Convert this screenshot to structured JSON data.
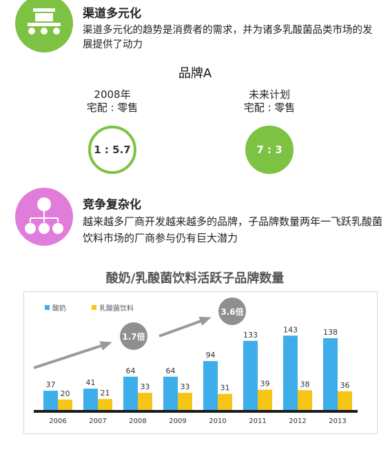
{
  "section_channel": {
    "title": "渠道多元化",
    "body": "渠道多元化的趋势是消费者的需求，并为诸多乳酸菌品类市场的发展提供了动力",
    "icon": "store-cart-icon"
  },
  "brand": {
    "title": "品牌A",
    "ratios": [
      {
        "line1": "2008年",
        "line2": "宅配 : 零售",
        "value": "1 : 5.7"
      },
      {
        "line1": "未来计划",
        "line2": "宅配 : 零售",
        "value": "7 : 3"
      }
    ]
  },
  "section_compete": {
    "title": "竞争复杂化",
    "body": "越来越多厂商开发越来越多的品牌，子品牌数量两年一飞跃乳酸菌饮料市场的厂商参与仍有巨大潜力",
    "icon": "org-tree-icon"
  },
  "colors": {
    "green": "#7dc242",
    "pink": "#e07ddb",
    "yogurt": "#3daee9",
    "drink": "#f5c518"
  },
  "chart_data": {
    "type": "bar",
    "title": "酸奶/乳酸菌饮料活跃子品牌数量",
    "categories": [
      "2006",
      "2007",
      "2008",
      "2009",
      "2010",
      "2011",
      "2012",
      "2013"
    ],
    "series": [
      {
        "name": "酸奶",
        "values": [
          37,
          41,
          64,
          64,
          94,
          133,
          143,
          138
        ]
      },
      {
        "name": "乳酸菌饮料",
        "values": [
          20,
          21,
          33,
          33,
          31,
          39,
          38,
          36
        ]
      }
    ],
    "annotations": [
      "1.7倍",
      "3.6倍"
    ],
    "ylim": [
      0,
      150
    ],
    "legend": "top-left"
  }
}
